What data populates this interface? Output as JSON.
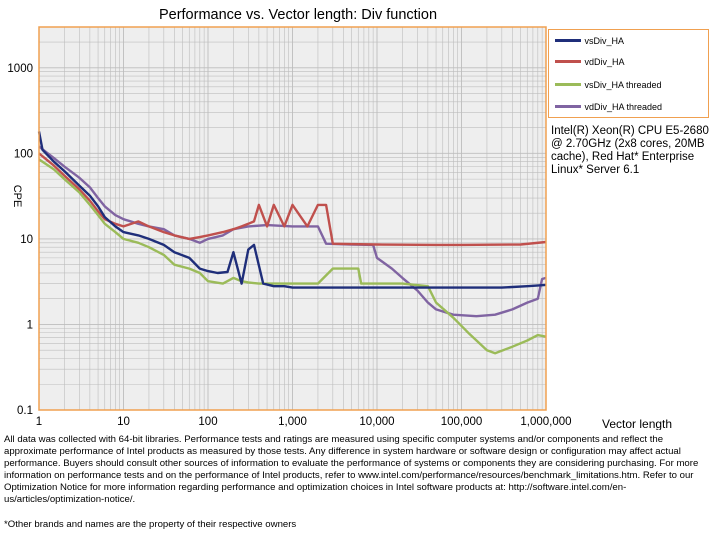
{
  "chart_data": {
    "type": "line",
    "title": "Performance vs. Vector length: Div function",
    "xlabel": "Vector length",
    "ylabel": "CPE",
    "xscale": "log",
    "yscale": "log",
    "xlim": [
      1,
      1000000
    ],
    "ylim": [
      0.1,
      3000
    ],
    "grid": true,
    "legend_position": "right",
    "x_tick_labels": [
      "1",
      "10",
      "100",
      "1,000",
      "10,000",
      "100,000",
      "1,000,000"
    ],
    "y_tick_labels": [
      "0.1",
      "1",
      "10",
      "100",
      "1000"
    ],
    "series": [
      {
        "name": "vsDiv_HA",
        "color": "#1f2e7a",
        "points": [
          [
            1,
            180
          ],
          [
            1.1,
            110
          ],
          [
            1.5,
            80
          ],
          [
            2,
            62
          ],
          [
            3,
            42
          ],
          [
            4,
            32
          ],
          [
            5,
            24
          ],
          [
            6,
            18
          ],
          [
            8,
            14
          ],
          [
            10,
            12
          ],
          [
            15,
            11
          ],
          [
            20,
            10
          ],
          [
            30,
            8.5
          ],
          [
            40,
            7
          ],
          [
            60,
            6
          ],
          [
            80,
            4.5
          ],
          [
            100,
            4.2
          ],
          [
            130,
            4
          ],
          [
            170,
            4.1
          ],
          [
            200,
            7
          ],
          [
            250,
            3
          ],
          [
            300,
            7.5
          ],
          [
            350,
            8.5
          ],
          [
            450,
            3
          ],
          [
            600,
            2.8
          ],
          [
            800,
            2.8
          ],
          [
            1000,
            2.7
          ],
          [
            2000,
            2.7
          ],
          [
            5000,
            2.7
          ],
          [
            10000,
            2.7
          ],
          [
            50000,
            2.7
          ],
          [
            100000,
            2.7
          ],
          [
            300000,
            2.7
          ],
          [
            600000,
            2.8
          ],
          [
            1000000,
            2.9
          ]
        ]
      },
      {
        "name": "vdDiv_HA",
        "color": "#c0504d",
        "points": [
          [
            1,
            100
          ],
          [
            1.5,
            72
          ],
          [
            2,
            55
          ],
          [
            3,
            38
          ],
          [
            4,
            28
          ],
          [
            5,
            21
          ],
          [
            6,
            17
          ],
          [
            8,
            15
          ],
          [
            10,
            14
          ],
          [
            15,
            16
          ],
          [
            20,
            14
          ],
          [
            30,
            12
          ],
          [
            40,
            11
          ],
          [
            60,
            10
          ],
          [
            80,
            10.5
          ],
          [
            100,
            11
          ],
          [
            150,
            12
          ],
          [
            200,
            13
          ],
          [
            250,
            14
          ],
          [
            300,
            15
          ],
          [
            350,
            16
          ],
          [
            400,
            25
          ],
          [
            500,
            14
          ],
          [
            600,
            25
          ],
          [
            800,
            14
          ],
          [
            1000,
            25
          ],
          [
            1500,
            14
          ],
          [
            2000,
            25
          ],
          [
            2500,
            25
          ],
          [
            3000,
            8.8
          ],
          [
            5000,
            8.7
          ],
          [
            10000,
            8.6
          ],
          [
            50000,
            8.5
          ],
          [
            100000,
            8.5
          ],
          [
            500000,
            8.6
          ],
          [
            1000000,
            9.2
          ]
        ]
      },
      {
        "name": "vsDiv_HA threaded",
        "color": "#9bbb59",
        "points": [
          [
            1,
            85
          ],
          [
            1.5,
            65
          ],
          [
            2,
            50
          ],
          [
            3,
            35
          ],
          [
            4,
            25
          ],
          [
            5,
            19
          ],
          [
            6,
            15
          ],
          [
            8,
            12
          ],
          [
            10,
            10
          ],
          [
            15,
            9
          ],
          [
            20,
            8
          ],
          [
            30,
            6.5
          ],
          [
            40,
            5
          ],
          [
            60,
            4.5
          ],
          [
            80,
            4
          ],
          [
            100,
            3.2
          ],
          [
            150,
            3
          ],
          [
            200,
            3.5
          ],
          [
            250,
            3.2
          ],
          [
            300,
            3.1
          ],
          [
            400,
            3
          ],
          [
            600,
            3
          ],
          [
            1000,
            3
          ],
          [
            2000,
            3
          ],
          [
            3000,
            4.5
          ],
          [
            6000,
            4.5
          ],
          [
            6500,
            3
          ],
          [
            10000,
            3
          ],
          [
            20000,
            3
          ],
          [
            40000,
            2.8
          ],
          [
            50000,
            1.8
          ],
          [
            80000,
            1.2
          ],
          [
            120000,
            0.8
          ],
          [
            200000,
            0.5
          ],
          [
            250000,
            0.46
          ],
          [
            400000,
            0.55
          ],
          [
            600000,
            0.65
          ],
          [
            800000,
            0.75
          ],
          [
            1000000,
            0.72
          ]
        ]
      },
      {
        "name": "vdDiv_HA threaded",
        "color": "#8064a2",
        "points": [
          [
            1,
            120
          ],
          [
            1.5,
            88
          ],
          [
            2,
            70
          ],
          [
            3,
            52
          ],
          [
            4,
            40
          ],
          [
            5,
            30
          ],
          [
            6,
            24
          ],
          [
            8,
            19
          ],
          [
            10,
            17
          ],
          [
            15,
            15
          ],
          [
            20,
            14
          ],
          [
            30,
            13
          ],
          [
            40,
            11
          ],
          [
            60,
            10
          ],
          [
            80,
            9
          ],
          [
            100,
            10
          ],
          [
            150,
            11
          ],
          [
            200,
            13
          ],
          [
            300,
            14
          ],
          [
            500,
            14.5
          ],
          [
            1000,
            14
          ],
          [
            2000,
            14
          ],
          [
            2500,
            8.8
          ],
          [
            5000,
            8.6
          ],
          [
            9000,
            8.5
          ],
          [
            10000,
            6
          ],
          [
            15000,
            4.5
          ],
          [
            20000,
            3.5
          ],
          [
            30000,
            2.5
          ],
          [
            40000,
            1.8
          ],
          [
            50000,
            1.5
          ],
          [
            80000,
            1.3
          ],
          [
            150000,
            1.25
          ],
          [
            250000,
            1.3
          ],
          [
            400000,
            1.5
          ],
          [
            600000,
            1.8
          ],
          [
            800000,
            2
          ],
          [
            900000,
            3.4
          ],
          [
            1000000,
            3.5
          ]
        ]
      }
    ]
  },
  "legend": {
    "items": [
      {
        "label": "vsDiv_HA",
        "color": "#1f2e7a"
      },
      {
        "label": "vdDiv_HA",
        "color": "#c0504d"
      },
      {
        "label": "vsDiv_HA threaded",
        "color": "#9bbb59"
      },
      {
        "label": "vdDiv_HA threaded",
        "color": "#8064a2"
      }
    ]
  },
  "cpu_note": "Intel(R) Xeon(R) CPU E5-2680 @ 2.70GHz (2x8 cores, 20MB cache), Red Hat* Enterprise Linux* Server 6.1",
  "disclaimer": "All data was collected with 64-bit libraries. Performance tests and ratings are measured using specific computer systems and/or components and reflect the approximate performance of Intel products as measured by those tests. Any difference in system hardware or software design or configuration may affect actual performance. Buyers should consult other sources of information to evaluate the performance of systems or components they are considering purchasing. For more information on performance tests and on the performance of Intel products, refer to www.intel.com/performance/resources/benchmark_limitations.htm. Refer to our Optimization Notice for more information regarding performance and optimization choices in Intel software products at: http://software.intel.com/en-us/articles/optimization-notice/.",
  "brands_note": "*Other brands and names are the property of their respective owners",
  "colors": {
    "plot_border": "#f0a050",
    "plot_bg": "#eeeeee",
    "grid": "#bdbdbd"
  }
}
